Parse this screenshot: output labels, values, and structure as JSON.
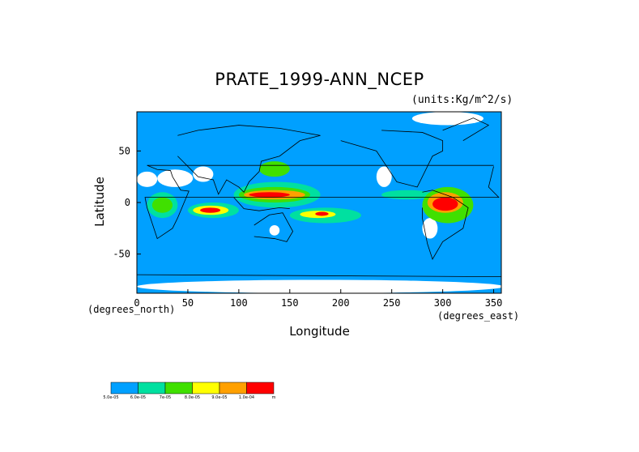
{
  "chart_data": {
    "type": "heatmap",
    "title": "PRATE_1999-ANN_NCEP",
    "units": "(units:Kg/m^2/s)",
    "xlabel": "Longitude",
    "ylabel": "Latitude",
    "x_unit": "(degrees_east)",
    "y_unit": "(degrees_north)",
    "xlim": [
      0,
      357.5
    ],
    "ylim": [
      -88,
      88
    ],
    "x_ticks": [
      0,
      50,
      100,
      150,
      200,
      250,
      300,
      350
    ],
    "y_ticks": [
      50,
      0,
      -50
    ],
    "colorbar": {
      "labels": [
        "5.0e-05",
        "6.0e-05",
        "7e-05",
        "8.0e-05",
        "9.0e-05",
        "1.0e-04",
        "m"
      ],
      "colors": [
        "#00a0ff",
        "#00e0a0",
        "#40e000",
        "#ffff00",
        "#ffa000",
        "#ff0000"
      ]
    },
    "regions": [
      {
        "level": 0,
        "color": "#ffffff",
        "lon": [
          0,
          20
        ],
        "lat": [
          15,
          30
        ]
      },
      {
        "level": 0,
        "color": "#ffffff",
        "lon": [
          20,
          55
        ],
        "lat": [
          15,
          32
        ]
      },
      {
        "level": 0,
        "color": "#ffffff",
        "lon": [
          55,
          75
        ],
        "lat": [
          20,
          35
        ]
      },
      {
        "level": 0,
        "color": "#ffffff",
        "lon": [
          235,
          250
        ],
        "lat": [
          15,
          35
        ]
      },
      {
        "level": 0,
        "color": "#ffffff",
        "lon": [
          280,
          295
        ],
        "lat": [
          -35,
          -15
        ]
      },
      {
        "level": 0,
        "color": "#ffffff",
        "lon": [
          130,
          140
        ],
        "lat": [
          -32,
          -22
        ]
      },
      {
        "level": 0,
        "color": "#ffffff",
        "lon": [
          0,
          360
        ],
        "lat": [
          -88,
          -75
        ]
      },
      {
        "level": 0,
        "color": "#ffffff",
        "lon": [
          270,
          340
        ],
        "lat": [
          75,
          88
        ]
      },
      {
        "level": 1,
        "color": "#00e0a0",
        "lon": [
          10,
          40
        ],
        "lat": [
          -15,
          10
        ]
      },
      {
        "level": 2,
        "color": "#40e000",
        "lon": [
          15,
          35
        ],
        "lat": [
          -10,
          5
        ]
      },
      {
        "level": 1,
        "color": "#00e0a0",
        "lon": [
          50,
          100
        ],
        "lat": [
          -15,
          0
        ]
      },
      {
        "level": 3,
        "color": "#ffff00",
        "lon": [
          55,
          90
        ],
        "lat": [
          -12,
          -3
        ]
      },
      {
        "level": 5,
        "color": "#ff0000",
        "lon": [
          62,
          82
        ],
        "lat": [
          -10,
          -5
        ]
      },
      {
        "level": 1,
        "color": "#00e0a0",
        "lon": [
          95,
          180
        ],
        "lat": [
          -5,
          20
        ]
      },
      {
        "level": 2,
        "color": "#40e000",
        "lon": [
          100,
          170
        ],
        "lat": [
          0,
          15
        ]
      },
      {
        "level": 4,
        "color": "#ffa000",
        "lon": [
          105,
          165
        ],
        "lat": [
          3,
          12
        ]
      },
      {
        "level": 5,
        "color": "#ff0000",
        "lon": [
          110,
          150
        ],
        "lat": [
          5,
          10
        ]
      },
      {
        "level": 1,
        "color": "#00e0a0",
        "lon": [
          150,
          220
        ],
        "lat": [
          -20,
          -5
        ]
      },
      {
        "level": 3,
        "color": "#ffff00",
        "lon": [
          160,
          195
        ],
        "lat": [
          -15,
          -8
        ]
      },
      {
        "level": 5,
        "color": "#ff0000",
        "lon": [
          175,
          188
        ],
        "lat": [
          -13,
          -9
        ]
      },
      {
        "level": 1,
        "color": "#00e0a0",
        "lon": [
          240,
          290
        ],
        "lat": [
          3,
          12
        ]
      },
      {
        "level": 2,
        "color": "#40e000",
        "lon": [
          280,
          330
        ],
        "lat": [
          -20,
          15
        ]
      },
      {
        "level": 4,
        "color": "#ffa000",
        "lon": [
          285,
          320
        ],
        "lat": [
          -10,
          10
        ]
      },
      {
        "level": 5,
        "color": "#ff0000",
        "lon": [
          290,
          315
        ],
        "lat": [
          -8,
          5
        ]
      },
      {
        "level": 2,
        "color": "#40e000",
        "lon": [
          120,
          150
        ],
        "lat": [
          25,
          40
        ]
      }
    ]
  }
}
